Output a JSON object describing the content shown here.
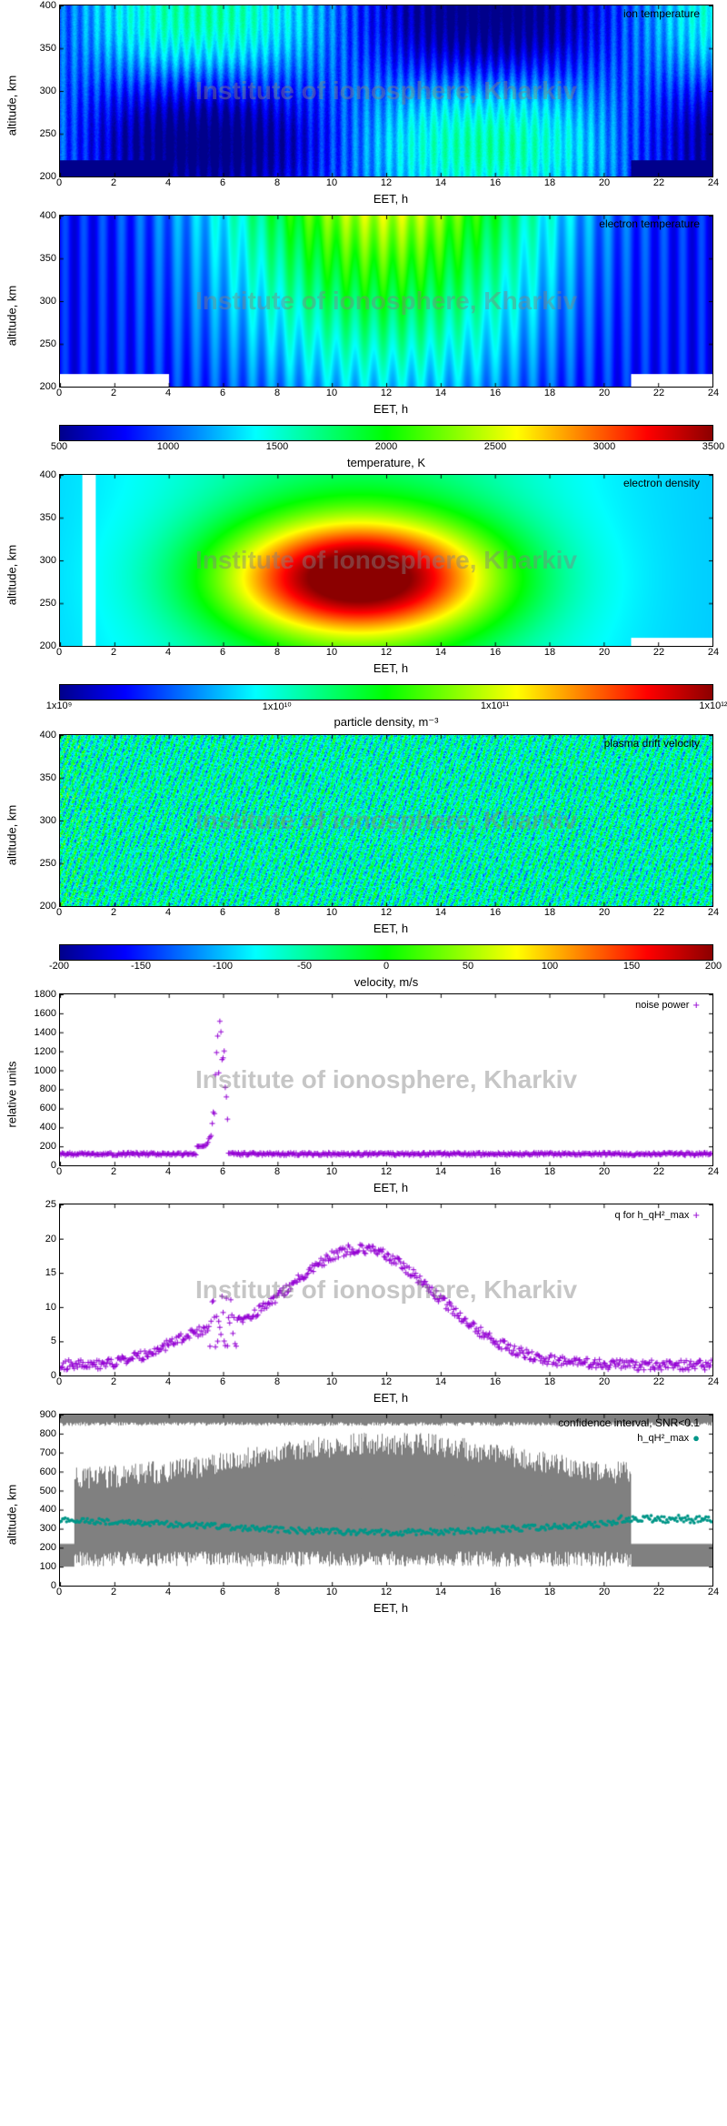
{
  "watermark_text": "Institute of ionosphere, Kharkiv",
  "watermark_color": "rgba(128,128,128,0.45)",
  "panels": {
    "ion_temp": {
      "type": "heatmap",
      "title": "ion temperature",
      "y_label": "altitude, km",
      "x_label": "EET, h",
      "y_ticks": [
        200,
        250,
        300,
        350,
        400
      ],
      "ylim": [
        200,
        400
      ],
      "x_ticks": [
        0,
        2,
        4,
        6,
        8,
        10,
        12,
        14,
        16,
        18,
        20,
        22,
        24
      ],
      "xlim": [
        0,
        24
      ],
      "colormap": "rainbow",
      "pattern": "ion_temp"
    },
    "electron_temp": {
      "type": "heatmap",
      "title": "electron temperature",
      "y_label": "altitude, km",
      "x_label": "EET, h",
      "y_ticks": [
        200,
        250,
        300,
        350,
        400
      ],
      "ylim": [
        200,
        400
      ],
      "x_ticks": [
        0,
        2,
        4,
        6,
        8,
        10,
        12,
        14,
        16,
        18,
        20,
        22,
        24
      ],
      "xlim": [
        0,
        24
      ],
      "colormap": "rainbow",
      "pattern": "electron_temp"
    },
    "temp_colorbar": {
      "type": "colorbar",
      "label": "temperature, K",
      "ticks": [
        500,
        1000,
        1500,
        2000,
        2500,
        3000,
        3500
      ],
      "range": [
        500,
        3500
      ],
      "colormap": "rainbow"
    },
    "electron_density": {
      "type": "heatmap",
      "title": "electron density",
      "y_label": "altitude, km",
      "x_label": "EET, h",
      "y_ticks": [
        200,
        250,
        300,
        350,
        400
      ],
      "ylim": [
        200,
        400
      ],
      "x_ticks": [
        0,
        2,
        4,
        6,
        8,
        10,
        12,
        14,
        16,
        18,
        20,
        22,
        24
      ],
      "xlim": [
        0,
        24
      ],
      "colormap": "rainbow",
      "pattern": "density"
    },
    "density_colorbar": {
      "type": "colorbar",
      "label": "particle density, m⁻³",
      "tick_labels": [
        "1x10⁹",
        "1x10¹⁰",
        "1x10¹¹",
        "1x10¹²"
      ],
      "tick_positions": [
        0,
        0.333,
        0.666,
        1.0
      ],
      "colormap": "rainbow"
    },
    "drift_velocity": {
      "type": "heatmap",
      "title": "plasma drift velocity",
      "y_label": "altitude, km",
      "x_label": "EET, h",
      "y_ticks": [
        200,
        250,
        300,
        350,
        400
      ],
      "ylim": [
        200,
        400
      ],
      "x_ticks": [
        0,
        2,
        4,
        6,
        8,
        10,
        12,
        14,
        16,
        18,
        20,
        22,
        24
      ],
      "xlim": [
        0,
        24
      ],
      "colormap": "rainbow",
      "pattern": "velocity"
    },
    "velocity_colorbar": {
      "type": "colorbar",
      "label": "velocity, m/s",
      "ticks": [
        -200,
        -150,
        -100,
        -50,
        0,
        50,
        100,
        150,
        200
      ],
      "range": [
        -200,
        200
      ],
      "colormap": "rainbow"
    },
    "noise_power": {
      "type": "scatter",
      "legend": "noise power",
      "legend_marker": "+",
      "legend_color": "#9400d3",
      "y_label": "relative units",
      "x_label": "EET, h",
      "y_ticks": [
        0,
        200,
        400,
        600,
        800,
        1000,
        1200,
        1400,
        1600,
        1800
      ],
      "ylim": [
        0,
        1800
      ],
      "x_ticks": [
        0,
        2,
        4,
        6,
        8,
        10,
        12,
        14,
        16,
        18,
        20,
        22,
        24
      ],
      "xlim": [
        0,
        24
      ],
      "marker_color": "#9400d3",
      "pattern": "noise"
    },
    "q_param": {
      "type": "scatter",
      "legend": "q for h_qH²_max",
      "legend_marker": "+",
      "legend_color": "#9400d3",
      "y_label": "",
      "x_label": "EET, h",
      "y_ticks": [
        0,
        5,
        10,
        15,
        20,
        25
      ],
      "ylim": [
        0,
        25
      ],
      "x_ticks": [
        0,
        2,
        4,
        6,
        8,
        10,
        12,
        14,
        16,
        18,
        20,
        22,
        24
      ],
      "xlim": [
        0,
        24
      ],
      "marker_color": "#9400d3",
      "pattern": "q"
    },
    "confidence": {
      "type": "combo",
      "title": "confidence interval, SNR<0.1",
      "legend": "h_qH²_max",
      "legend_marker": "●",
      "legend_color": "#009688",
      "y_label": "altitude, km",
      "x_label": "EET, h",
      "y_ticks": [
        0,
        100,
        200,
        300,
        400,
        500,
        600,
        700,
        800,
        900
      ],
      "ylim": [
        0,
        900
      ],
      "x_ticks": [
        0,
        2,
        4,
        6,
        8,
        10,
        12,
        14,
        16,
        18,
        20,
        22,
        24
      ],
      "xlim": [
        0,
        24
      ],
      "marker_color": "#009688",
      "fill_color": "#808080",
      "pattern": "confidence"
    }
  },
  "colormaps": {
    "rainbow": [
      "#00008b",
      "#0000ff",
      "#0080ff",
      "#00ffff",
      "#00ff80",
      "#00ff00",
      "#80ff00",
      "#ffff00",
      "#ff8000",
      "#ff0000",
      "#8b0000"
    ]
  },
  "font_family": "sans-serif",
  "background_color": "#ffffff",
  "border_color": "#000000"
}
